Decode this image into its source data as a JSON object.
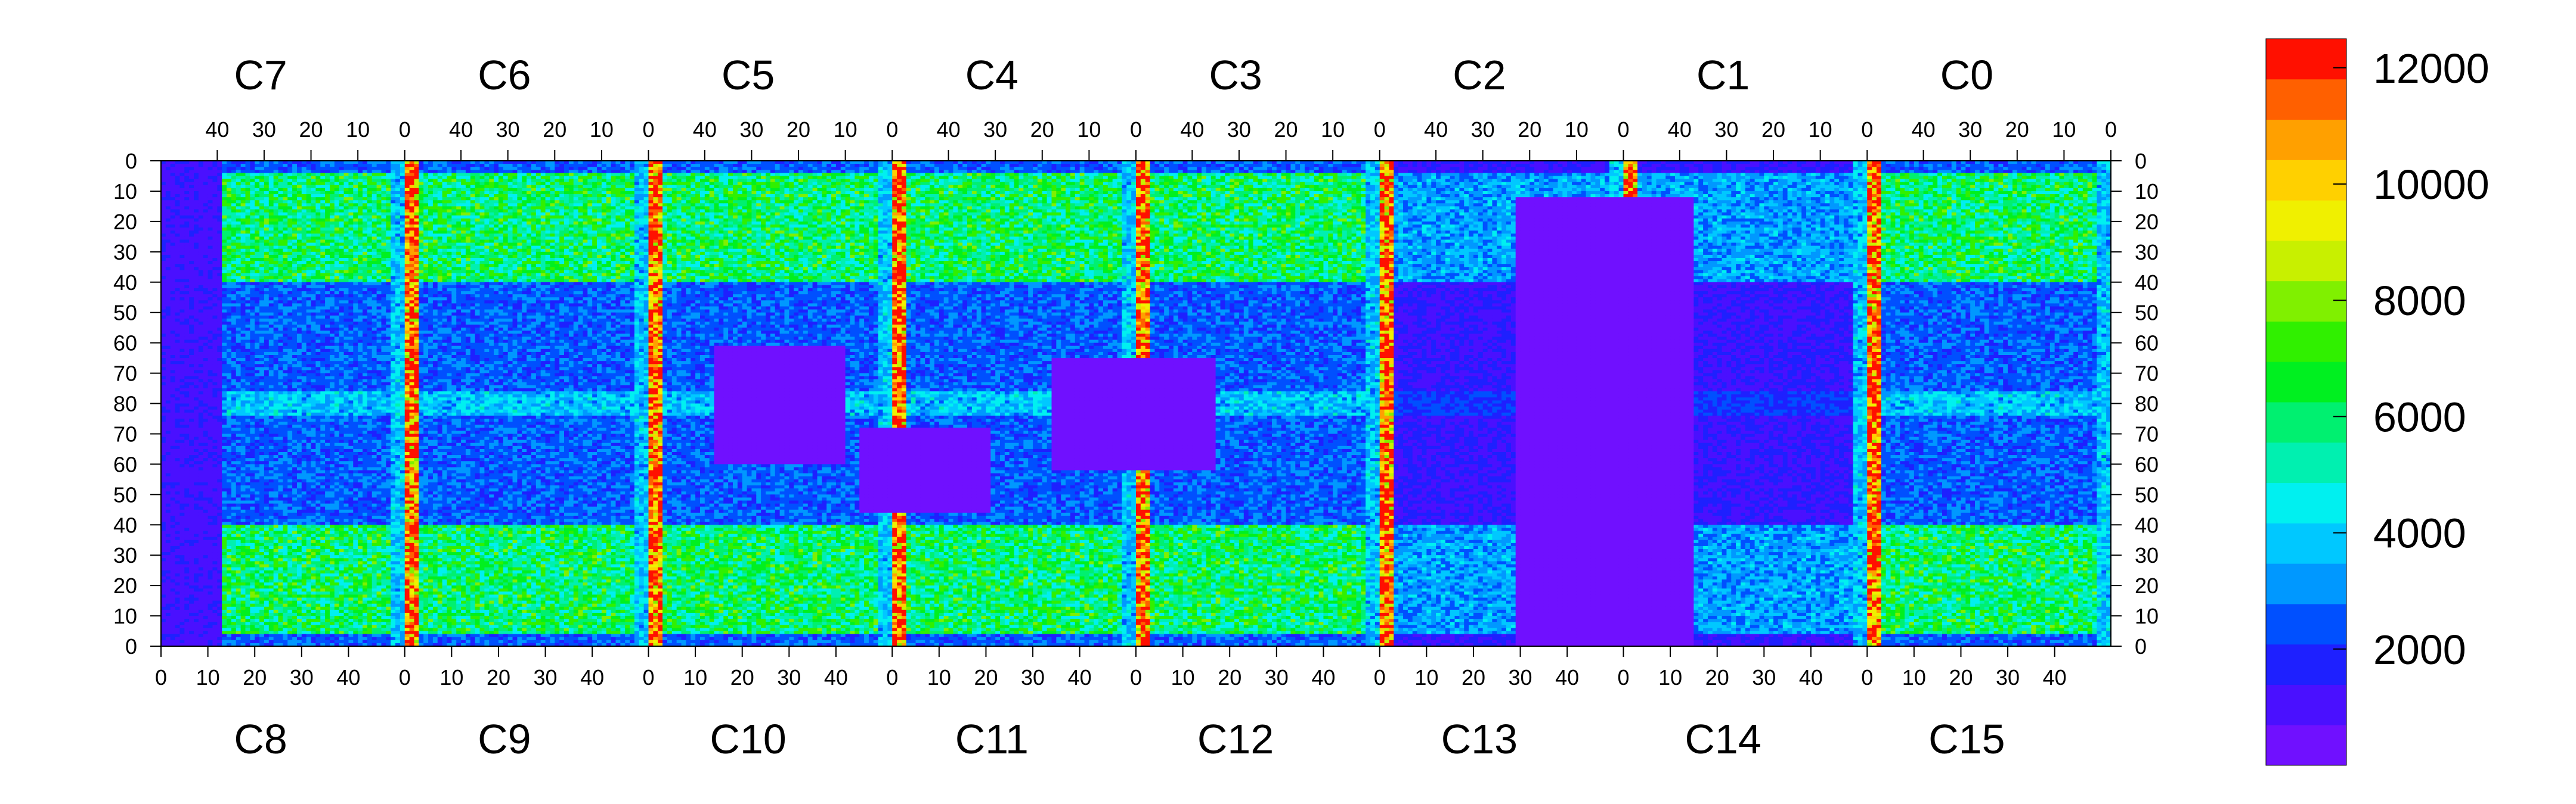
{
  "chart_data": {
    "type": "heatmap",
    "title": "",
    "xlabel": "",
    "ylabel": "",
    "top_chip_labels": [
      "C7",
      "C6",
      "C5",
      "C4",
      "C3",
      "C2",
      "C1",
      "C0"
    ],
    "bottom_chip_labels": [
      "C8",
      "C9",
      "C10",
      "C11",
      "C12",
      "C13",
      "C14",
      "C15"
    ],
    "top_tick_labels": [
      "40",
      "30",
      "20",
      "10",
      "0"
    ],
    "bottom_tick_labels": [
      "0",
      "10",
      "20",
      "30",
      "40"
    ],
    "left_axis_ticks": [
      "0",
      "10",
      "20",
      "30",
      "40",
      "50",
      "60",
      "70",
      "80",
      "70",
      "60",
      "50",
      "40",
      "30",
      "20",
      "10",
      "0"
    ],
    "right_axis_ticks": [
      "0",
      "10",
      "20",
      "30",
      "40",
      "50",
      "60",
      "70",
      "80",
      "70",
      "60",
      "50",
      "40",
      "30",
      "20",
      "10",
      "0"
    ],
    "colorbar": {
      "range": [
        0,
        12500
      ],
      "tick_values": [
        2000,
        4000,
        6000,
        8000,
        10000,
        12000
      ],
      "tick_labels": [
        "2000",
        "4000",
        "6000",
        "8000",
        "10000",
        "12000"
      ],
      "colors": [
        "#7010FF",
        "#4A10FF",
        "#1E20FF",
        "#0050FF",
        "#0098FF",
        "#00C8FF",
        "#00F0F0",
        "#00F0B0",
        "#00F070",
        "#00F020",
        "#30F000",
        "#80F000",
        "#C8F000",
        "#F0F000",
        "#FFD000",
        "#FFA000",
        "#FF6000",
        "#FF1000"
      ]
    },
    "columns_per_chip": 52,
    "rows_per_half": 80,
    "grid": false,
    "legend": "right"
  }
}
